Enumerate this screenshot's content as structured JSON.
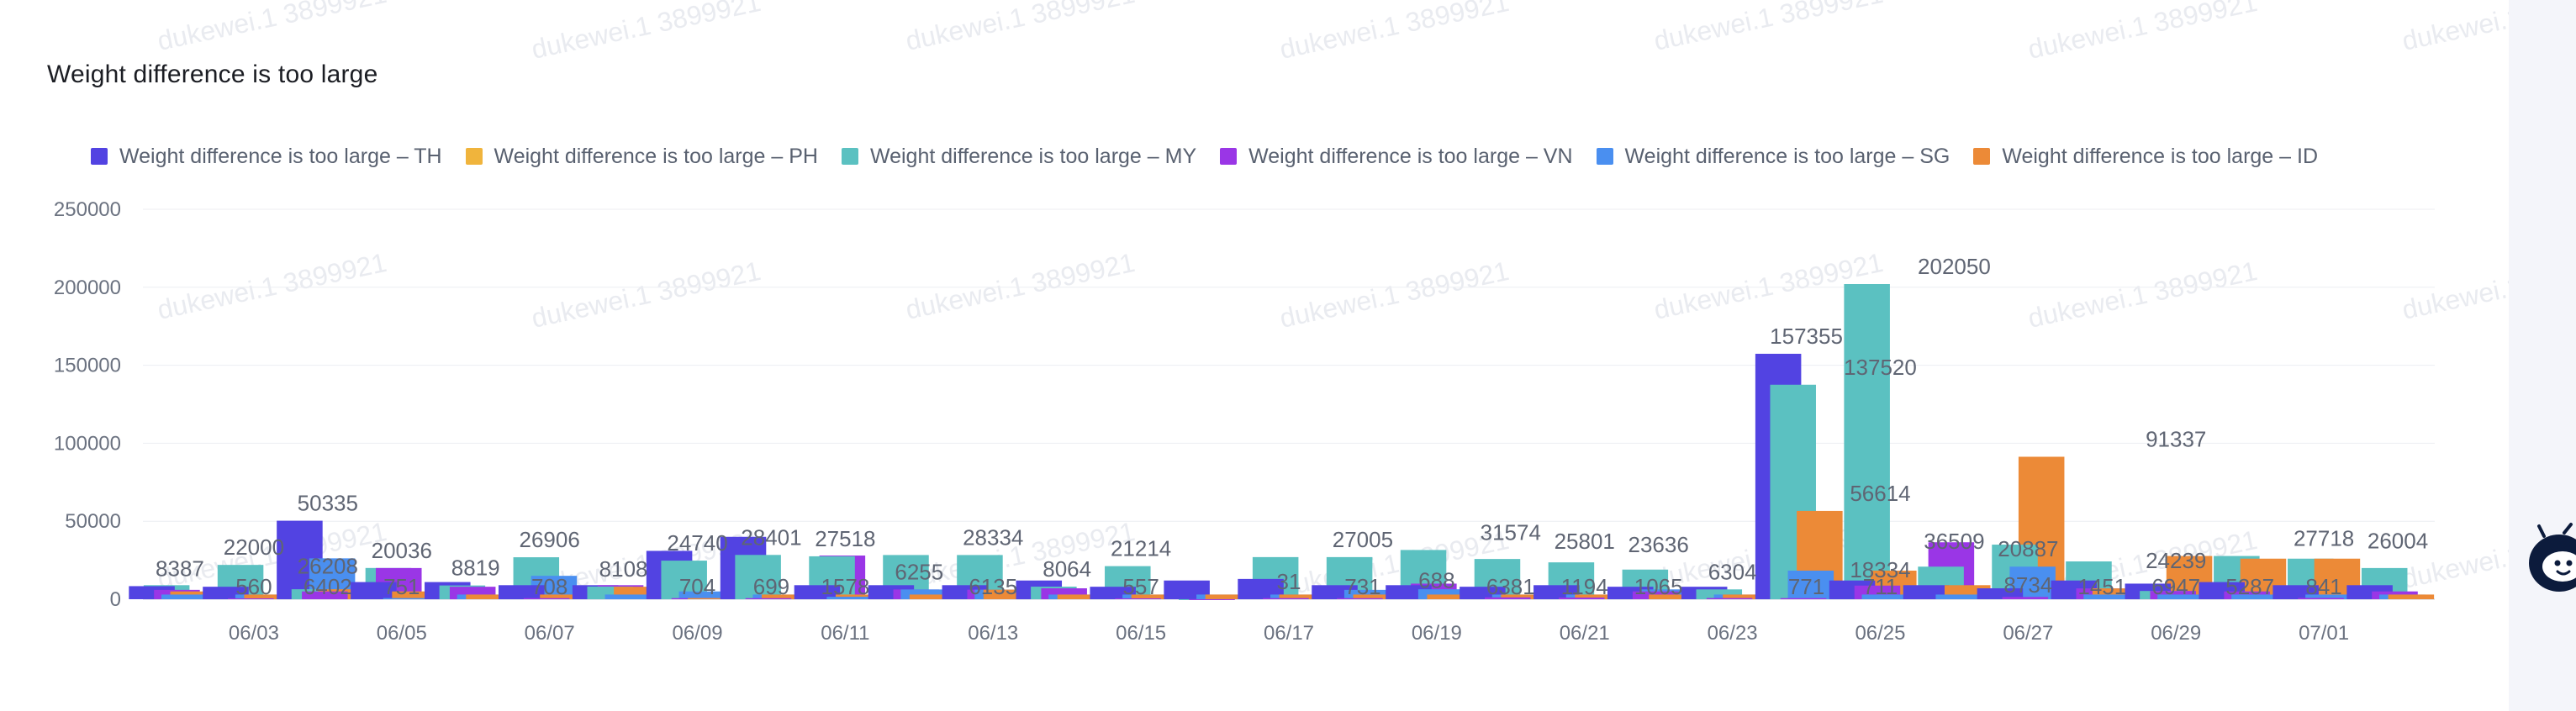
{
  "chart_data": {
    "type": "bar",
    "title": "Weight difference is too large",
    "legend_position": "top-left",
    "grid": true,
    "ylim": [
      0,
      250000
    ],
    "y_ticks": [
      "0",
      "50000",
      "100000",
      "150000",
      "200000",
      "250000"
    ],
    "x_tick_labels": [
      "06/03",
      "06/05",
      "06/07",
      "06/09",
      "06/11",
      "06/13",
      "06/15",
      "06/17",
      "06/19",
      "06/21",
      "06/23",
      "06/25",
      "06/27",
      "06/29",
      "07/01"
    ],
    "categories": [
      "06/02",
      "06/03",
      "06/04",
      "06/05",
      "06/06",
      "06/07",
      "06/08",
      "06/09",
      "06/10",
      "06/11",
      "06/12",
      "06/13",
      "06/14",
      "06/15",
      "06/16",
      "06/17",
      "06/18",
      "06/19",
      "06/20",
      "06/21",
      "06/22",
      "06/23",
      "06/24",
      "06/25",
      "06/26",
      "06/27",
      "06/28",
      "06/29",
      "06/30",
      "07/01",
      "07/02"
    ],
    "series": [
      {
        "name": "Weight difference is too large – TH",
        "color": "#5243e2",
        "values": [
          8387,
          8000,
          50335,
          11000,
          11000,
          9000,
          9000,
          31000,
          40000,
          9000,
          9000,
          9000,
          12000,
          8000,
          12000,
          13000,
          9000,
          9000,
          8000,
          9000,
          8000,
          8000,
          157355,
          12000,
          9000,
          7000,
          12000,
          10000,
          11000,
          9000,
          9000
        ]
      },
      {
        "name": "Weight difference is too large – PH",
        "color": "#f0b43c",
        "values": [
          0,
          0,
          0,
          0,
          0,
          0,
          0,
          0,
          0,
          0,
          0,
          0,
          0,
          0,
          0,
          0,
          0,
          0,
          0,
          0,
          0,
          0,
          0,
          0,
          0,
          0,
          0,
          0,
          0,
          0,
          0
        ]
      },
      {
        "name": "Weight difference is too large – MY",
        "color": "#5bc1c1",
        "values": [
          9000,
          22000,
          6402,
          20036,
          8819,
          26906,
          8108,
          24740,
          28401,
          27518,
          28334,
          28334,
          8064,
          21214,
          31,
          27005,
          27005,
          31574,
          25801,
          23636,
          19000,
          6304,
          137520,
          202050,
          20887,
          35000,
          24239,
          5287,
          27718,
          26004,
          20000
        ]
      },
      {
        "name": "Weight difference is too large – VN",
        "color": "#9a36e6",
        "values": [
          6000,
          560,
          5000,
          20000,
          8000,
          708,
          9000,
          704,
          699,
          28000,
          6255,
          6135,
          7000,
          557,
          31,
          731,
          688,
          10000,
          1194,
          1065,
          5000,
          771,
          711,
          8734,
          36509,
          1451,
          6947,
          5287,
          5000,
          841,
          5000
        ]
      },
      {
        "name": "Weight difference is too large – SG",
        "color": "#4a8ff0",
        "values": [
          3000,
          3000,
          26208,
          751,
          3000,
          15000,
          3000,
          5000,
          3000,
          1578,
          6255,
          6135,
          3000,
          3000,
          3000,
          3000,
          6000,
          6381,
          3000,
          3000,
          6304,
          3000,
          18334,
          3000,
          3000,
          20887,
          3000,
          3000,
          3000,
          3000,
          3000
        ]
      },
      {
        "name": "Weight difference is too large – ID",
        "color": "#ec8a37",
        "values": [
          5000,
          3000,
          6402,
          5000,
          3000,
          3000,
          8000,
          704,
          3000,
          3000,
          3000,
          6135,
          3000,
          3000,
          3000,
          3000,
          3000,
          3000,
          3000,
          3000,
          3000,
          3000,
          56614,
          18334,
          9000,
          91337,
          6947,
          27718,
          26004,
          26004,
          3000
        ]
      }
    ],
    "labels": [
      {
        "ci": 0,
        "value": "8387",
        "dy": 0
      },
      {
        "ci": 1,
        "value": "22000",
        "dy": 0
      },
      {
        "ci": 1,
        "value": "560",
        "dy": 20
      },
      {
        "ci": 2,
        "value": "50335",
        "dy": 0
      },
      {
        "ci": 2,
        "value": "26208",
        "dy": 30
      },
      {
        "ci": 2,
        "value": "6402",
        "dy": 20
      },
      {
        "ci": 3,
        "value": "20036",
        "dy": 0
      },
      {
        "ci": 3,
        "value": "751",
        "dy": 20
      },
      {
        "ci": 4,
        "value": "8819",
        "dy": 0
      },
      {
        "ci": 5,
        "value": "26906",
        "dy": 0
      },
      {
        "ci": 5,
        "value": "708",
        "dy": 20
      },
      {
        "ci": 6,
        "value": "8108",
        "dy": 0
      },
      {
        "ci": 7,
        "value": "24740",
        "dy": 0
      },
      {
        "ci": 7,
        "value": "704",
        "dy": 20
      },
      {
        "ci": 8,
        "value": "28401",
        "dy": 0
      },
      {
        "ci": 8,
        "value": "699",
        "dy": 20
      },
      {
        "ci": 9,
        "value": "27518",
        "dy": 0
      },
      {
        "ci": 9,
        "value": "1578",
        "dy": 20
      },
      {
        "ci": 10,
        "value": "6255",
        "dy": 0
      },
      {
        "ci": 11,
        "value": "28334",
        "dy": 0
      },
      {
        "ci": 11,
        "value": "6135",
        "dy": 20
      },
      {
        "ci": 12,
        "value": "8064",
        "dy": 0
      },
      {
        "ci": 13,
        "value": "21214",
        "dy": 0
      },
      {
        "ci": 13,
        "value": "557",
        "dy": 20
      },
      {
        "ci": 15,
        "value": "31",
        "dy": 0
      },
      {
        "ci": 16,
        "value": "27005",
        "dy": 0
      },
      {
        "ci": 16,
        "value": "731",
        "dy": 20
      },
      {
        "ci": 17,
        "value": "688",
        "dy": 0
      },
      {
        "ci": 18,
        "value": "31574",
        "dy": 0
      },
      {
        "ci": 18,
        "value": "6381",
        "dy": 20
      },
      {
        "ci": 19,
        "value": "25801",
        "dy": 0
      },
      {
        "ci": 19,
        "value": "1194",
        "dy": 20
      },
      {
        "ci": 20,
        "value": "23636",
        "dy": 0
      },
      {
        "ci": 20,
        "value": "1065",
        "dy": 20
      },
      {
        "ci": 21,
        "value": "6304",
        "dy": 0
      },
      {
        "ci": 22,
        "value": "157355",
        "dy": 0
      },
      {
        "ci": 22,
        "value": "771",
        "dy": 20
      },
      {
        "ci": 23,
        "value": "56614",
        "dy": 0
      },
      {
        "ci": 23,
        "value": "137520",
        "dy": 0
      },
      {
        "ci": 23,
        "value": "18334",
        "dy": 20
      },
      {
        "ci": 23,
        "value": "711",
        "dy": 20
      },
      {
        "ci": 24,
        "value": "202050",
        "dy": 0
      },
      {
        "ci": 24,
        "value": "36509",
        "dy": 20
      },
      {
        "ci": 25,
        "value": "8734",
        "dy": 20
      },
      {
        "ci": 25,
        "value": "20887",
        "dy": 0
      },
      {
        "ci": 26,
        "value": "1451",
        "dy": 20
      },
      {
        "ci": 27,
        "value": "91337",
        "dy": 0
      },
      {
        "ci": 27,
        "value": "24239",
        "dy": 20
      },
      {
        "ci": 27,
        "value": "6947",
        "dy": 20
      },
      {
        "ci": 28,
        "value": "5287",
        "dy": 20
      },
      {
        "ci": 29,
        "value": "27718",
        "dy": 0
      },
      {
        "ci": 29,
        "value": "841",
        "dy": 20
      },
      {
        "ci": 30,
        "value": "26004",
        "dy": 0
      }
    ]
  },
  "watermark": "dukewei.1 3899921",
  "icons": {
    "assistant": "robot-assistant-icon"
  }
}
